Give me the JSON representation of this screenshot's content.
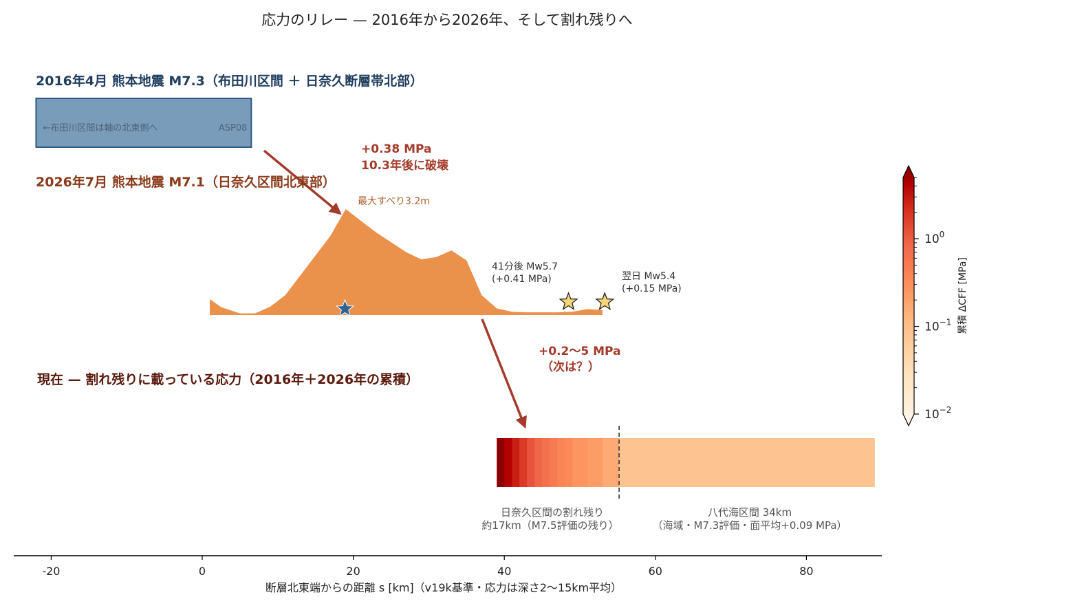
{
  "chart_data": {
    "type": "area",
    "title": "応力のリレー — 2016年から2026年、そして割れ残りへ",
    "xlabel": "断層北東端からの距離 s [km]（v19k基準・応力は深さ2〜15km平均）",
    "xlim": [
      -25,
      90
    ],
    "xticks": [
      -20,
      0,
      20,
      40,
      60,
      80
    ],
    "panel_2016": {
      "heading": "2016年4月  熊本地震 M7.3（布田川区間 ＋ 日奈久断層帯北部）",
      "rupture_extent_km": [
        -22,
        6.5
      ],
      "inner_left_label": "←布田川区間は軸の北東側へ",
      "inner_right_label": "ASP08",
      "color": "#7a9cbb"
    },
    "relay_2016_to_2026": {
      "line1": "+0.38 MPa",
      "line2": "10.3年後に破壊"
    },
    "panel_2026": {
      "heading": "2026年7月  熊本地震 M7.1（日奈久区間北東部）",
      "max_slip_label": "最大すべり3.2m",
      "max_slip_m": 3.2,
      "slip_profile": {
        "s_km": [
          1,
          2.5,
          5,
          7,
          9,
          11,
          13,
          15,
          17,
          19,
          21,
          23,
          25,
          27,
          29,
          31,
          33,
          35,
          37,
          39,
          41,
          43,
          45,
          47,
          49,
          51,
          53
        ],
        "slip_m": [
          0.48,
          0.24,
          0.05,
          0.05,
          0.25,
          0.6,
          1.2,
          1.8,
          2.4,
          3.2,
          2.85,
          2.5,
          2.2,
          1.9,
          1.68,
          1.75,
          1.95,
          1.65,
          0.6,
          0.2,
          0.1,
          0.08,
          0.08,
          0.08,
          0.1,
          0.18,
          0.15
        ]
      },
      "hypocenter_km": 18.9,
      "aftershocks": [
        {
          "s_km": 48.5,
          "label": "41分後 Mw5.7",
          "dcff": "(+0.41 MPa)"
        },
        {
          "s_km": 53.3,
          "label": "翌日 Mw5.4",
          "dcff": "(+0.15 MPa)"
        }
      ],
      "color": "#ea914c"
    },
    "relay_2026_to_next": {
      "line1": "+0.2〜5 MPa",
      "line2": "（次は？）"
    },
    "panel_now": {
      "heading": "現在 — 割れ残りに載っている応力（2016年＋2026年の累積）",
      "bar_extent_km": [
        39,
        89
      ],
      "boundary_km": 55.2,
      "segments": [
        {
          "from_km": 39,
          "to_km": 40,
          "dcff_mpa": 4.5
        },
        {
          "from_km": 40,
          "to_km": 41,
          "dcff_mpa": 3.2
        },
        {
          "from_km": 41,
          "to_km": 42,
          "dcff_mpa": 2.2
        },
        {
          "from_km": 42,
          "to_km": 43,
          "dcff_mpa": 1.5
        },
        {
          "from_km": 43,
          "to_km": 44,
          "dcff_mpa": 1.0
        },
        {
          "from_km": 44,
          "to_km": 45,
          "dcff_mpa": 0.75
        },
        {
          "from_km": 45,
          "to_km": 46,
          "dcff_mpa": 0.58
        },
        {
          "from_km": 46,
          "to_km": 47,
          "dcff_mpa": 0.46
        },
        {
          "from_km": 47,
          "to_km": 48,
          "dcff_mpa": 0.38
        },
        {
          "from_km": 48,
          "to_km": 49,
          "dcff_mpa": 0.33
        },
        {
          "from_km": 49,
          "to_km": 51,
          "dcff_mpa": 0.26
        },
        {
          "from_km": 51,
          "to_km": 53,
          "dcff_mpa": 0.22
        },
        {
          "from_km": 53,
          "to_km": 55.2,
          "dcff_mpa": 0.17
        },
        {
          "from_km": 55.2,
          "to_km": 89,
          "dcff_mpa": 0.09
        }
      ],
      "label_left_line1": "日奈久区間の割れ残り",
      "label_left_line2": "約17km（M7.5評価の残り）",
      "label_right_line1": "八代海区間 34km",
      "label_right_line2": "（海域・M7.3評価・面平均+0.09 MPa）"
    },
    "colorbar": {
      "label": "累積 ΔCFF [MPa]",
      "scale": "log",
      "range_mpa": [
        0.01,
        5
      ],
      "ticks": [
        {
          "value": 1,
          "base": "10",
          "exp": "0"
        },
        {
          "value": 0.1,
          "base": "10",
          "exp": "−1"
        },
        {
          "value": 0.01,
          "base": "10",
          "exp": "−2"
        }
      ],
      "colormap": "OrRd"
    },
    "colors": {
      "heading_2016": "#1f3d5f",
      "heading_2026": "#8a3a1a",
      "heading_now": "#5a1a0e",
      "relay": "#a33b2a",
      "star_hypocenter": "#2f6496",
      "star_aftershock": "#f7d67a"
    }
  }
}
